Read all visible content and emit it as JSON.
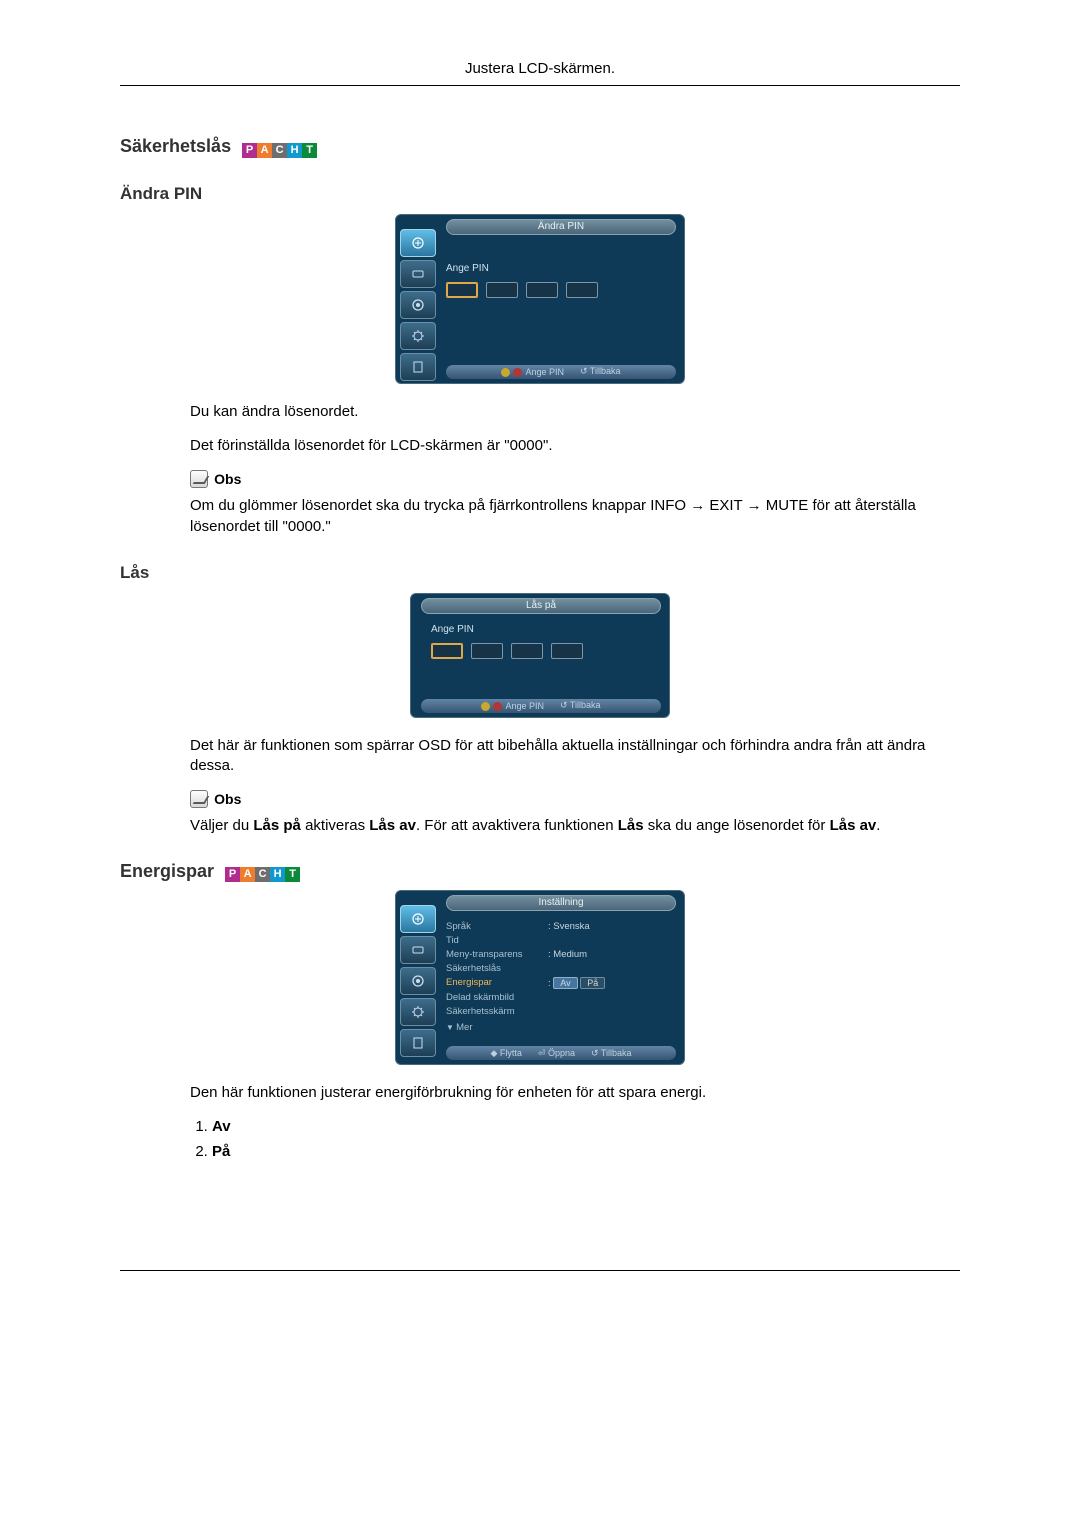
{
  "header": "Justera LCD-skärmen.",
  "pacht": {
    "p": "P",
    "a": "A",
    "c": "C",
    "h": "H",
    "t": "T"
  },
  "sec1_title": "Säkerhetslås",
  "sec1_sub": "Ändra PIN",
  "osd1": {
    "title": "Ändra PIN",
    "label": "Ange PIN",
    "footer_left": "Ange PIN",
    "footer_right": "Tillbaka"
  },
  "p1a": "Du kan ändra lösenordet.",
  "p1b": "Det förinställda lösenordet för LCD-skärmen är \"0000\".",
  "obs": "Obs",
  "p1c": "Om du glömmer lösenordet ska du trycka på fjärrkontrollens knappar INFO → EXIT → MUTE för att återställa lösenordet till \"0000.\"",
  "sec2_sub": "Lås",
  "osd2": {
    "title": "Lås på",
    "label": "Ange PIN",
    "footer_left": "Ange PIN",
    "footer_right": "Tillbaka"
  },
  "p2a": "Det här är funktionen som spärrar OSD för att bibehålla aktuella inställningar och förhindra andra från att ändra dessa.",
  "p2b_pre": "Väljer du ",
  "p2b_b1": "Lås på",
  "p2b_mid1": " aktiveras ",
  "p2b_b2": "Lås av",
  "p2b_mid2": ". För att avaktivera funktionen ",
  "p2b_b3": "Lås",
  "p2b_mid3": " ska du ange lösenordet för ",
  "p2b_b4": "Lås av",
  "p2b_end": ".",
  "sec3_title": "Energispar",
  "osd3": {
    "title": "Inställning",
    "rows": [
      {
        "lbl": "Språk",
        "val": ": Svenska"
      },
      {
        "lbl": "Tid",
        "val": ""
      },
      {
        "lbl": "Meny-transparens",
        "val": ": Medium"
      },
      {
        "lbl": "Säkerhetslås",
        "val": ""
      },
      {
        "lbl": "Energispar",
        "val": "",
        "hl": true,
        "pills": [
          "Av",
          "På"
        ]
      },
      {
        "lbl": "Delad skärmbild",
        "val": ""
      },
      {
        "lbl": "Säkerhetsskärm",
        "val": ""
      }
    ],
    "mer": "Mer",
    "footer_move": "Flytta",
    "footer_open": "Öppna",
    "footer_back": "Tillbaka"
  },
  "p3a": "Den här funktionen justerar energiförbrukning för enheten för att spara energi.",
  "opt1": "Av",
  "opt2": "På"
}
